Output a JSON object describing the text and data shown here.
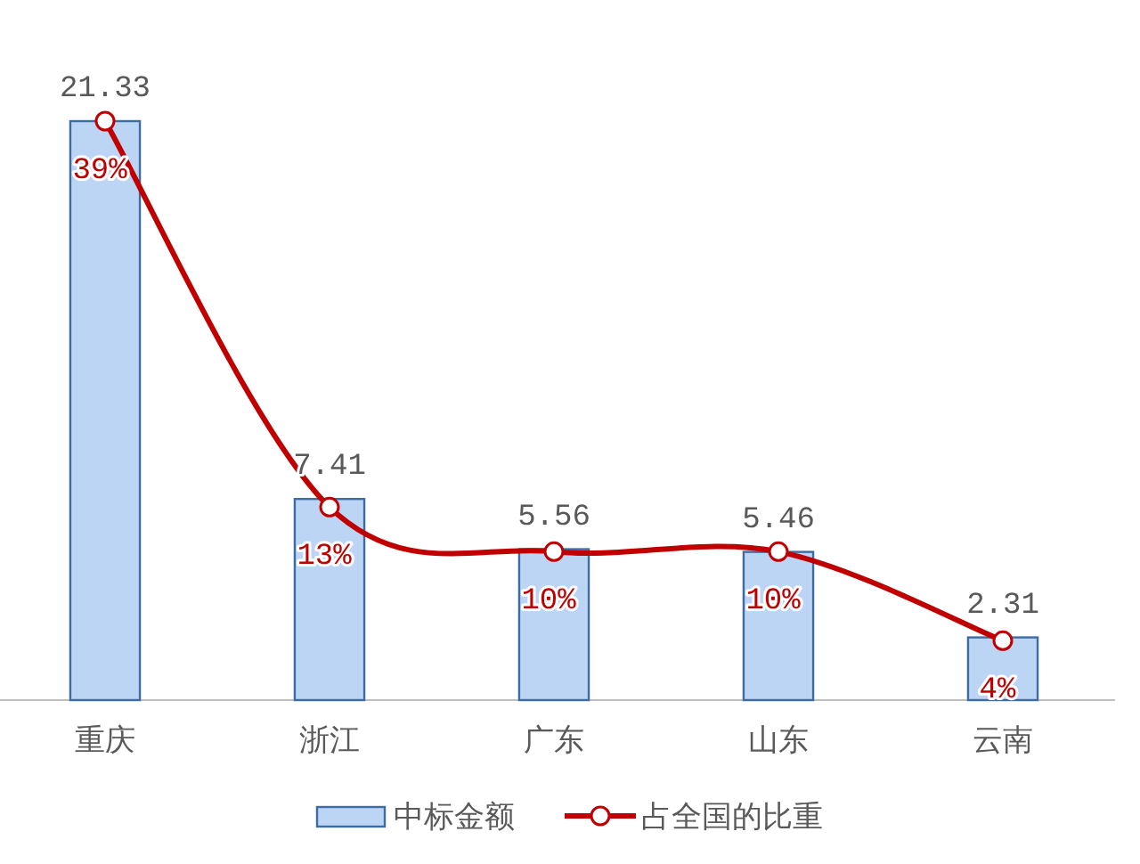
{
  "chart_data": {
    "type": "bar",
    "categories": [
      "重庆",
      "浙江",
      "广东",
      "山东",
      "云南"
    ],
    "series": [
      {
        "name": "中标金额",
        "color": "#bdd5f5",
        "values": [
          21.33,
          7.41,
          5.56,
          5.46,
          2.31
        ]
      },
      {
        "name": "占全国的比重",
        "type": "line",
        "axis": "y2",
        "color": "#c00000",
        "marker": "circle",
        "line_style": "solid",
        "values": [
          39,
          13,
          10,
          10,
          4
        ],
        "value_labels": [
          "39%",
          "13%",
          "10%",
          "10%",
          "4%"
        ]
      }
    ],
    "data_labels": true,
    "tick_labels": "x",
    "grid": false,
    "legend": "bottom"
  }
}
